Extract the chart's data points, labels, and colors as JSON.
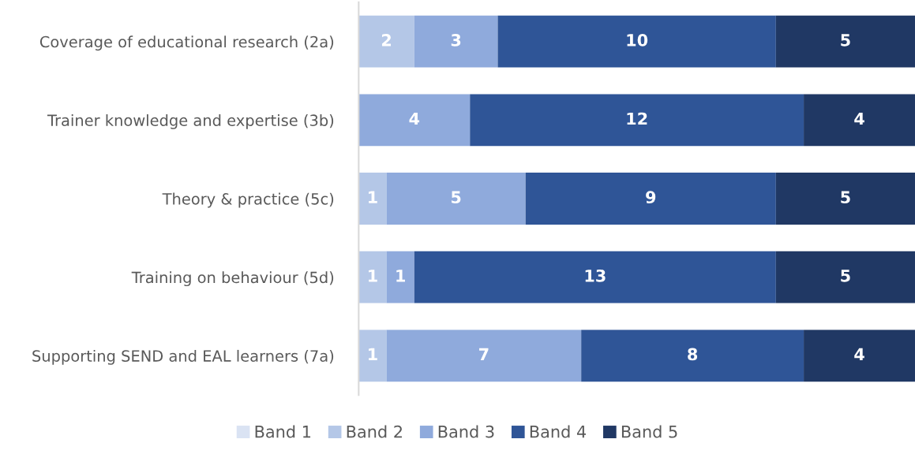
{
  "chart_data": {
    "type": "bar",
    "orientation": "horizontal",
    "stacked": true,
    "categories": [
      "Coverage of educational research (2a)",
      "Trainer knowledge and expertise (3b)",
      "Theory & practice (5c)",
      "Training on behaviour (5d)",
      "Supporting SEND and EAL learners (7a)"
    ],
    "series": [
      {
        "name": "Band 1",
        "color": "#dae3f3",
        "values": [
          0,
          0,
          0,
          0,
          0
        ],
        "value_labels": [
          null,
          null,
          null,
          null,
          null
        ]
      },
      {
        "name": "Band 2",
        "color": "#b4c7e7",
        "values": [
          2,
          0,
          1,
          1,
          1
        ],
        "value_labels": [
          "2",
          null,
          "1",
          "1",
          "1"
        ]
      },
      {
        "name": "Band 3",
        "color": "#8faadc",
        "values": [
          3,
          4,
          5,
          1,
          7
        ],
        "value_labels": [
          "3",
          "4",
          "5",
          "1",
          "7"
        ]
      },
      {
        "name": "Band 4",
        "color": "#2f5597",
        "values": [
          10,
          12,
          9,
          13,
          8
        ],
        "value_labels": [
          "10",
          "12",
          "9",
          "13",
          "8"
        ]
      },
      {
        "name": "Band 5",
        "color": "#203864",
        "values": [
          5,
          4,
          5,
          5,
          4
        ],
        "value_labels": [
          "5",
          "4",
          "5",
          "5",
          "4"
        ]
      }
    ],
    "xlim": [
      0,
      20
    ],
    "tick_labels": "y",
    "grid": false,
    "legend": "bottom"
  }
}
